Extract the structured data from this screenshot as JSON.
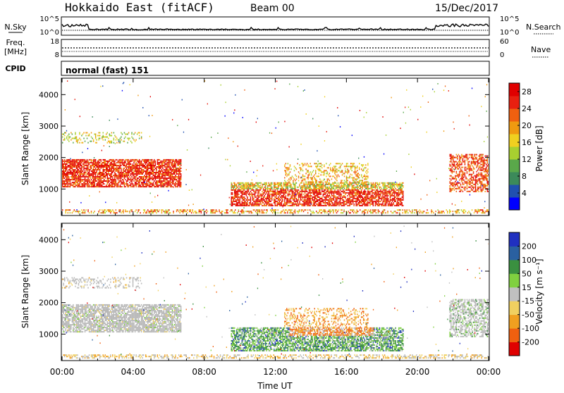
{
  "header": {
    "station": "Hokkaido East (fitACF)",
    "beam": "Beam 00",
    "date": "15/Dec/2017"
  },
  "strips": {
    "nsky_label": "N.Sky",
    "nsearch_label": "N.Search",
    "noise_ticks": [
      "10^5",
      "10^0"
    ],
    "freq_label_1": "Freq.",
    "freq_label_2": "[MHz]",
    "freq_ticks": [
      "18",
      "8"
    ],
    "nave_label": "Nave",
    "nave_ticks": [
      "60",
      "0"
    ],
    "cpid_label": "CPID",
    "cpid_value": "normal (fast) 151"
  },
  "colors": {
    "power_scale": [
      "#0000ff",
      "#2050b0",
      "#3c8a5a",
      "#5aa84a",
      "#a8d030",
      "#f0d020",
      "#f09a10",
      "#f06010",
      "#e82010",
      "#e00000"
    ],
    "velocity_scale": [
      "#2030c0",
      "#2a60a0",
      "#3a9040",
      "#80d040",
      "#c0c0c0",
      "#f0d060",
      "#f0a020",
      "#f06010",
      "#e00000"
    ],
    "ground_scatter": "#b8b8b8"
  },
  "chart_data": [
    {
      "type": "heatmap",
      "name": "power",
      "ylabel": "Slant Range [km]",
      "yticks": [
        "4000",
        "3000",
        "2000",
        "1000"
      ],
      "ylim": [
        180,
        4500
      ],
      "xlim_hours": [
        0,
        24
      ],
      "colorbar_label": "Power [dB]",
      "colorbar_ticks": [
        "28",
        "24",
        "20",
        "16",
        "12",
        "8",
        "4"
      ],
      "colorbar_range": [
        0,
        30
      ]
    },
    {
      "type": "heatmap",
      "name": "velocity",
      "ylabel": "Slant Range [km]",
      "yticks": [
        "4000",
        "3000",
        "2000",
        "1000"
      ],
      "ylim": [
        180,
        4500
      ],
      "xlim_hours": [
        0,
        24
      ],
      "colorbar_label": "Velocity [m s⁻¹]",
      "colorbar_ticks": [
        "200",
        "100",
        "50",
        "15",
        "-15",
        "-50",
        "-100",
        "-200"
      ]
    }
  ],
  "x_axis": {
    "label": "Time UT",
    "ticks": [
      "00:00",
      "04:00",
      "08:00",
      "12:00",
      "16:00",
      "20:00",
      "00:00"
    ]
  }
}
